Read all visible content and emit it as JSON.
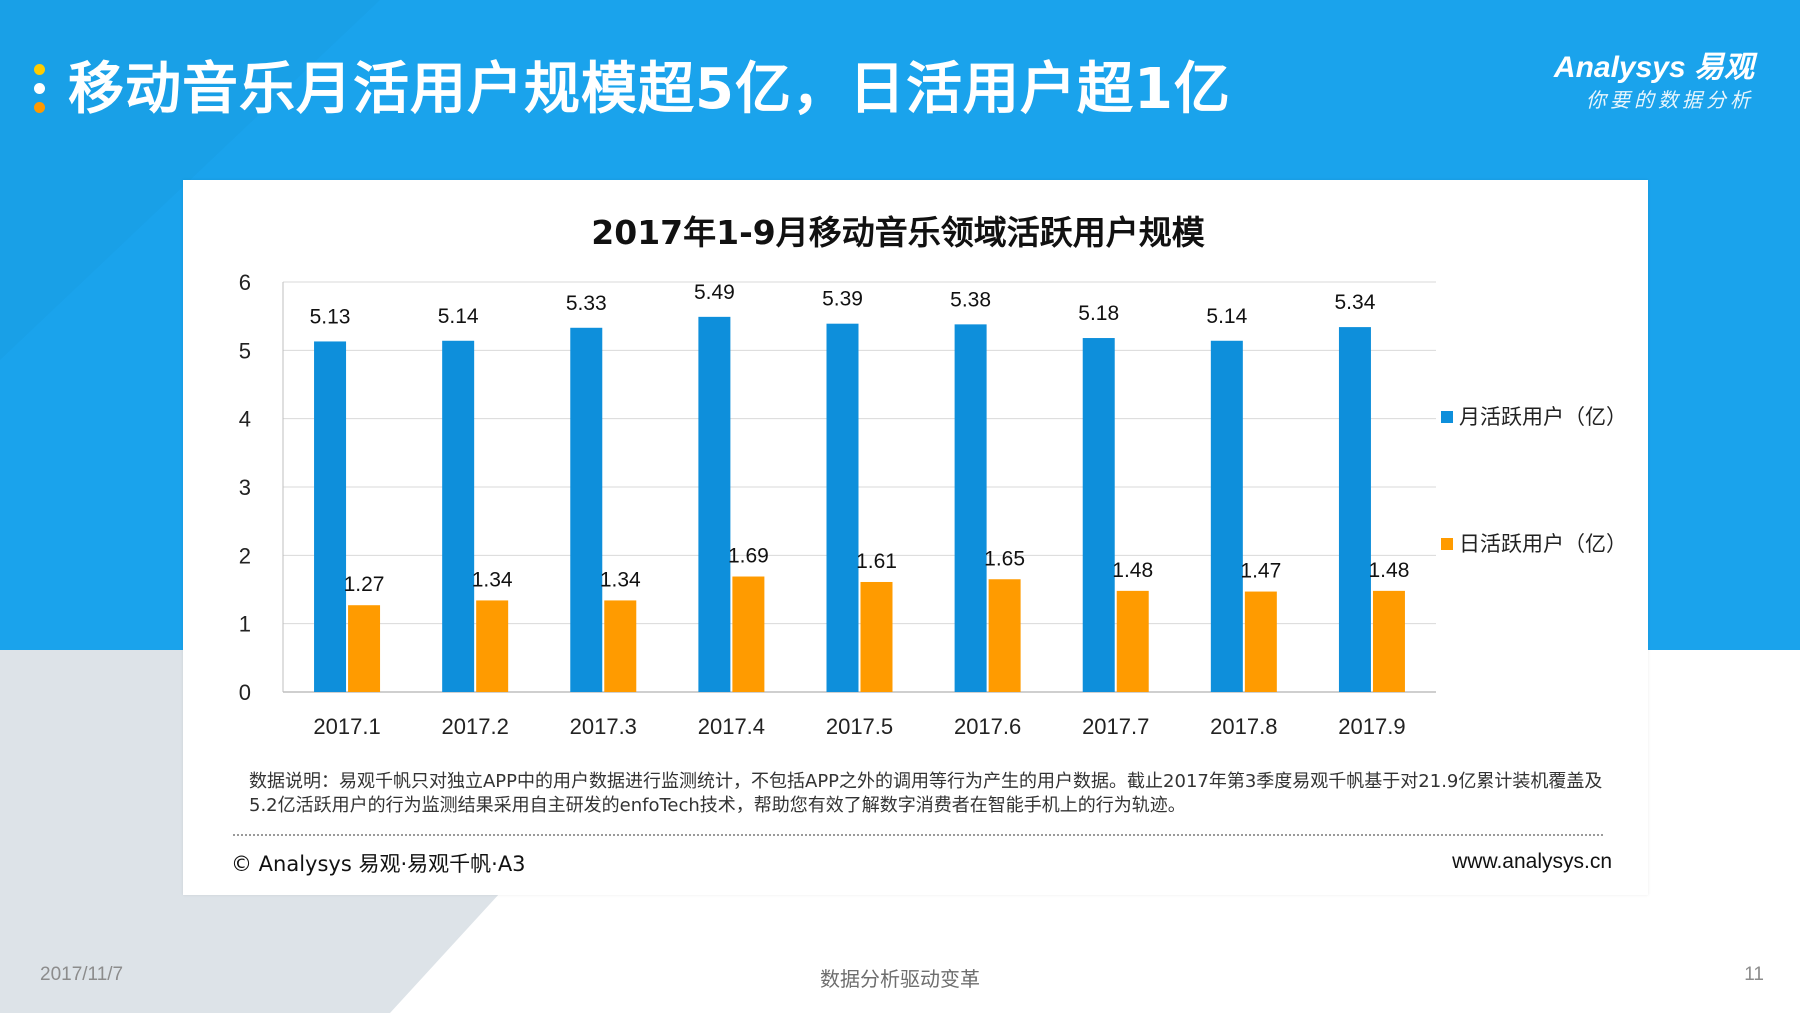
{
  "header": {
    "title": "移动音乐月活用户规模超5亿，日活用户超1亿"
  },
  "logo": {
    "brand": "Analysys 易观",
    "tagline": "你要的数据分析"
  },
  "colors": {
    "header_bg": "#1aa3ec",
    "accent_blue": "#0e8fdb",
    "accent_orange": "#ff9b00",
    "bullet_yellow": "#ffcc00",
    "bullet_orange": "#ff9900"
  },
  "chart_data": {
    "type": "bar",
    "title": "2017年1-9月移动音乐领域活跃用户规模",
    "categories": [
      "2017.1",
      "2017.2",
      "2017.3",
      "2017.4",
      "2017.5",
      "2017.6",
      "2017.7",
      "2017.8",
      "2017.9"
    ],
    "series": [
      {
        "name": "月活跃用户（亿）",
        "color": "#0e8fdb",
        "values": [
          5.13,
          5.14,
          5.33,
          5.49,
          5.39,
          5.38,
          5.18,
          5.14,
          5.34
        ]
      },
      {
        "name": "日活跃用户（亿）",
        "color": "#ff9b00",
        "values": [
          1.27,
          1.34,
          1.34,
          1.69,
          1.61,
          1.65,
          1.48,
          1.47,
          1.48
        ]
      }
    ],
    "y_ticks": [
      0,
      1,
      2,
      3,
      4,
      5,
      6
    ],
    "ylim": [
      0,
      6
    ],
    "xlabel": "",
    "ylabel": "",
    "grid": true,
    "legend_position": "right"
  },
  "note": {
    "text": "数据说明：易观千帆只对独立APP中的用户数据进行监测统计，不包括APP之外的调用等行为产生的用户数据。截止2017年第3季度易观千帆基于对21.9亿累计装机覆盖及5.2亿活跃用户的行为监测结果采用自主研发的enfoTech技术，帮助您有效了解数字消费者在智能手机上的行为轨迹。"
  },
  "copyright": "© Analysys 易观·易观千帆·A3",
  "website": "www.analysys.cn",
  "footer": {
    "date": "2017/11/7",
    "center": "数据分析驱动变革",
    "page": "11"
  }
}
